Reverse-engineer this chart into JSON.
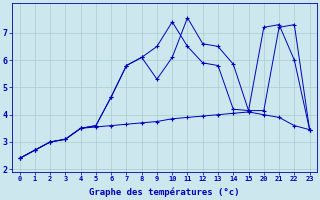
{
  "background_color": "#cce8ee",
  "grid_color": "#aacccc",
  "line_color": "#0000bb",
  "xlabel": "Graphe des températures (°c)",
  "tick_color": "#0000bb",
  "series1_y": [
    2.4,
    2.7,
    3.0,
    3.1,
    3.5,
    3.55,
    3.6,
    3.65,
    3.7,
    3.75,
    3.85,
    3.9,
    3.95,
    4.0,
    4.05,
    4.1,
    4.0,
    3.9,
    3.6,
    3.45
  ],
  "series2_y": [
    2.4,
    2.7,
    3.0,
    3.1,
    3.5,
    3.6,
    4.65,
    5.8,
    6.1,
    5.3,
    6.1,
    7.55,
    6.6,
    6.5,
    5.85,
    4.15,
    4.15,
    7.2,
    7.3,
    3.45
  ],
  "series3_y": [
    2.4,
    2.7,
    3.0,
    3.1,
    3.5,
    3.6,
    4.65,
    5.8,
    6.1,
    6.5,
    7.4,
    6.5,
    5.9,
    5.8,
    4.2,
    4.15,
    7.2,
    7.3,
    6.0,
    3.45
  ],
  "xtick_labels": [
    "0",
    "1",
    "2",
    "3",
    "4",
    "5",
    "6",
    "7",
    "8",
    "9",
    "10",
    "11",
    "12",
    "13",
    "14",
    "15",
    "20",
    "21",
    "22",
    "23"
  ],
  "yticks": [
    2,
    3,
    4,
    5,
    6,
    7
  ],
  "ylim": [
    1.9,
    8.1
  ],
  "figsize": [
    3.2,
    2.0
  ],
  "dpi": 100
}
